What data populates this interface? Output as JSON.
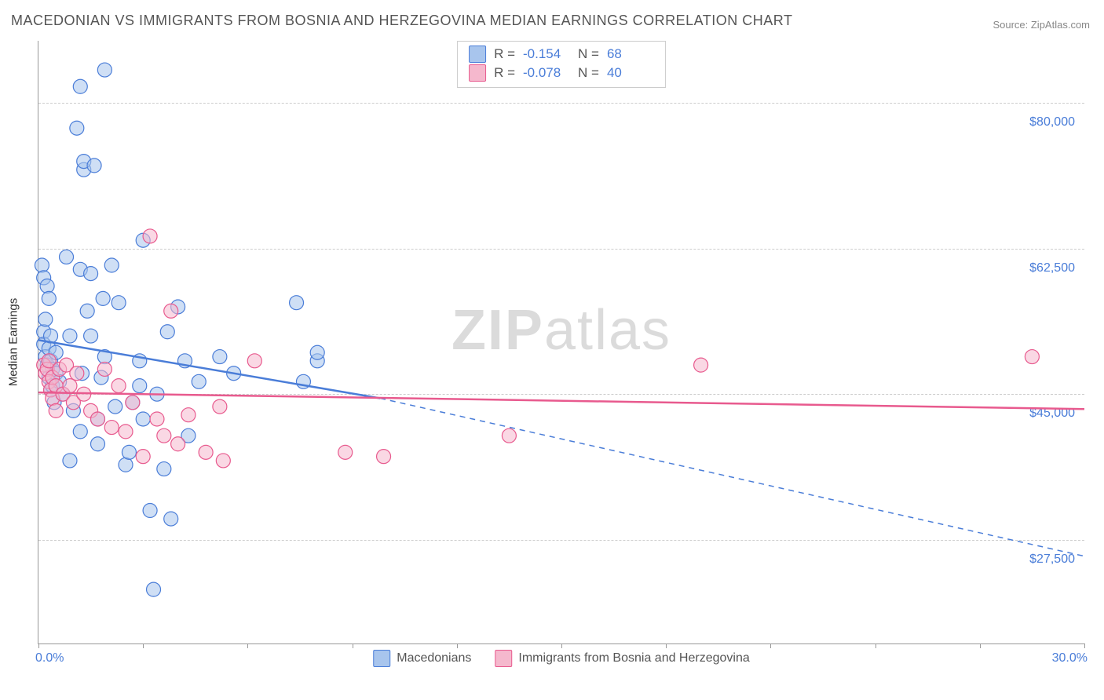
{
  "title": "MACEDONIAN VS IMMIGRANTS FROM BOSNIA AND HERZEGOVINA MEDIAN EARNINGS CORRELATION CHART",
  "source": "Source: ZipAtlas.com",
  "watermark_bold": "ZIP",
  "watermark_light": "atlas",
  "y_axis_title": "Median Earnings",
  "chart": {
    "type": "scatter",
    "xlim": [
      0,
      30
    ],
    "ylim": [
      15000,
      87500
    ],
    "x_tick_positions": [
      0,
      3,
      6,
      9,
      12,
      15,
      18,
      21,
      24,
      27,
      30
    ],
    "x_tick_labels": {
      "0": "0.0%",
      "30": "30.0%"
    },
    "y_gridlines": [
      27500,
      45000,
      62500,
      80000
    ],
    "y_tick_labels": [
      "$27,500",
      "$45,000",
      "$62,500",
      "$80,000"
    ],
    "background_color": "#ffffff",
    "grid_color": "#cccccc",
    "axis_color": "#999999",
    "label_color": "#4a7dd8",
    "marker_radius": 9,
    "marker_opacity": 0.55,
    "series": [
      {
        "key": "macedonians",
        "label": "Macedonians",
        "color_fill": "#a8c5ed",
        "color_stroke": "#4a7dd8",
        "R": "-0.154",
        "N": "68",
        "trend": {
          "solid": {
            "x1": 0,
            "y1": 51500,
            "x2": 9.8,
            "y2": 44500
          },
          "dashed": {
            "x1": 9.8,
            "y1": 44500,
            "x2": 30,
            "y2": 25500
          },
          "width": 2.5
        },
        "points": [
          [
            0.1,
            60500
          ],
          [
            0.15,
            59000
          ],
          [
            0.15,
            52500
          ],
          [
            0.15,
            51000
          ],
          [
            0.2,
            54000
          ],
          [
            0.2,
            49500
          ],
          [
            0.25,
            58000
          ],
          [
            0.25,
            48500
          ],
          [
            0.3,
            56500
          ],
          [
            0.3,
            50500
          ],
          [
            0.3,
            47000
          ],
          [
            0.35,
            52000
          ],
          [
            0.35,
            49000
          ],
          [
            0.35,
            45500
          ],
          [
            0.4,
            46000
          ],
          [
            0.4,
            48000
          ],
          [
            0.45,
            44000
          ],
          [
            0.5,
            50000
          ],
          [
            0.5,
            47500
          ],
          [
            0.6,
            46500
          ],
          [
            0.7,
            45000
          ],
          [
            0.8,
            61500
          ],
          [
            0.9,
            52000
          ],
          [
            0.9,
            37000
          ],
          [
            1.0,
            43000
          ],
          [
            1.1,
            77000
          ],
          [
            1.2,
            82000
          ],
          [
            1.2,
            60000
          ],
          [
            1.2,
            40500
          ],
          [
            1.25,
            47500
          ],
          [
            1.3,
            72000
          ],
          [
            1.3,
            73000
          ],
          [
            1.4,
            55000
          ],
          [
            1.5,
            59500
          ],
          [
            1.5,
            52000
          ],
          [
            1.6,
            72500
          ],
          [
            1.7,
            42000
          ],
          [
            1.7,
            39000
          ],
          [
            1.8,
            47000
          ],
          [
            1.85,
            56500
          ],
          [
            1.9,
            84000
          ],
          [
            1.9,
            49500
          ],
          [
            2.1,
            60500
          ],
          [
            2.2,
            43500
          ],
          [
            2.3,
            56000
          ],
          [
            2.5,
            36500
          ],
          [
            2.6,
            38000
          ],
          [
            2.7,
            44000
          ],
          [
            2.9,
            49000
          ],
          [
            2.9,
            46000
          ],
          [
            3.0,
            63500
          ],
          [
            3.0,
            42000
          ],
          [
            3.2,
            31000
          ],
          [
            3.3,
            21500
          ],
          [
            3.4,
            45000
          ],
          [
            3.6,
            36000
          ],
          [
            3.7,
            52500
          ],
          [
            3.8,
            30000
          ],
          [
            4.0,
            55500
          ],
          [
            4.2,
            49000
          ],
          [
            4.3,
            40000
          ],
          [
            4.6,
            46500
          ],
          [
            5.2,
            49500
          ],
          [
            5.6,
            47500
          ],
          [
            7.4,
            56000
          ],
          [
            7.6,
            46500
          ],
          [
            8.0,
            49000
          ],
          [
            8.0,
            50000
          ]
        ]
      },
      {
        "key": "bosnia",
        "label": "Immigrants from Bosnia and Herzegovina",
        "color_fill": "#f5b8cd",
        "color_stroke": "#e85a8e",
        "R": "-0.078",
        "N": "40",
        "trend": {
          "solid": {
            "x1": 0,
            "y1": 45200,
            "x2": 30,
            "y2": 43200
          },
          "width": 2.5
        },
        "points": [
          [
            0.15,
            48500
          ],
          [
            0.2,
            47500
          ],
          [
            0.25,
            48000
          ],
          [
            0.3,
            46500
          ],
          [
            0.3,
            49000
          ],
          [
            0.35,
            45500
          ],
          [
            0.4,
            47000
          ],
          [
            0.4,
            44500
          ],
          [
            0.5,
            46000
          ],
          [
            0.5,
            43000
          ],
          [
            0.6,
            48000
          ],
          [
            0.7,
            45000
          ],
          [
            0.8,
            48500
          ],
          [
            0.9,
            46000
          ],
          [
            1.0,
            44000
          ],
          [
            1.1,
            47500
          ],
          [
            1.3,
            45000
          ],
          [
            1.5,
            43000
          ],
          [
            1.7,
            42000
          ],
          [
            1.9,
            48000
          ],
          [
            2.1,
            41000
          ],
          [
            2.3,
            46000
          ],
          [
            2.5,
            40500
          ],
          [
            2.7,
            44000
          ],
          [
            3.0,
            37500
          ],
          [
            3.2,
            64000
          ],
          [
            3.4,
            42000
          ],
          [
            3.6,
            40000
          ],
          [
            3.8,
            55000
          ],
          [
            4.0,
            39000
          ],
          [
            4.3,
            42500
          ],
          [
            4.8,
            38000
          ],
          [
            5.2,
            43500
          ],
          [
            5.3,
            37000
          ],
          [
            6.2,
            49000
          ],
          [
            8.8,
            38000
          ],
          [
            9.9,
            37500
          ],
          [
            13.5,
            40000
          ],
          [
            19.0,
            48500
          ],
          [
            28.5,
            49500
          ]
        ]
      }
    ]
  },
  "stats_box": {
    "r_label": "R  =",
    "n_label": "N  ="
  }
}
